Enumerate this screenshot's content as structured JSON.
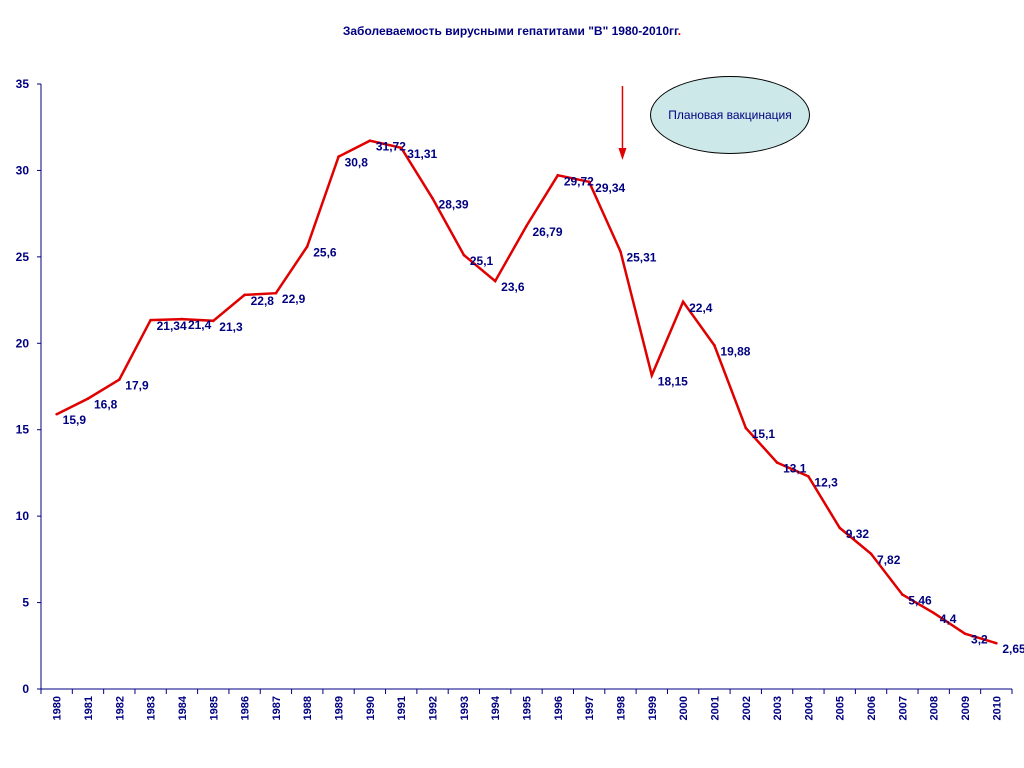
{
  "chart_data": {
    "type": "line",
    "title": "Заболеваемость вирусными гепатитами \"В\" 1980-2010гг",
    "title_suffix": ".",
    "ylim": [
      0,
      35
    ],
    "yticks": [
      0,
      5,
      10,
      15,
      20,
      25,
      30,
      35
    ],
    "categories": [
      "1980",
      "1981",
      "1982",
      "1983",
      "1984",
      "1985",
      "1986",
      "1987",
      "1988",
      "1989",
      "1990",
      "1991",
      "1992",
      "1993",
      "1994",
      "1995",
      "1996",
      "1997",
      "1998",
      "1999",
      "2000",
      "2001",
      "2002",
      "2003",
      "2004",
      "2005",
      "2006",
      "2007",
      "2008",
      "2009",
      "2010"
    ],
    "series": [
      {
        "values": [
          15.9,
          16.8,
          17.9,
          21.34,
          21.4,
          21.3,
          22.8,
          22.9,
          25.6,
          30.8,
          31.72,
          31.31,
          28.39,
          25.1,
          23.6,
          26.79,
          29.72,
          29.34,
          25.31,
          18.15,
          22.4,
          19.88,
          15.1,
          13.1,
          12.3,
          9.32,
          7.82,
          5.46,
          4.4,
          3.2,
          2.65
        ],
        "labels": [
          "15,9",
          "16,8",
          "17,9",
          "21,34",
          "21,4",
          "21,3",
          "22,8",
          "22,9",
          "25,6",
          "30,8",
          "31,72",
          "31,31",
          "28,39",
          "25,1",
          "23,6",
          "26,79",
          "29,72",
          "29,34",
          "25,31",
          "18,15",
          "22,4",
          "19,88",
          "15,1",
          "13,1",
          "12,3",
          "9,32",
          "7,82",
          "5,46",
          "4,4",
          "3,2",
          "2,65"
        ],
        "color": "#e00000"
      }
    ],
    "grid": false,
    "annotation": {
      "text": "Плановая вакцинация",
      "arrow_at_category": "1998",
      "arrow_color": "#e00000",
      "fill_color": "#cce8e8"
    },
    "axis_color": "#000080"
  }
}
